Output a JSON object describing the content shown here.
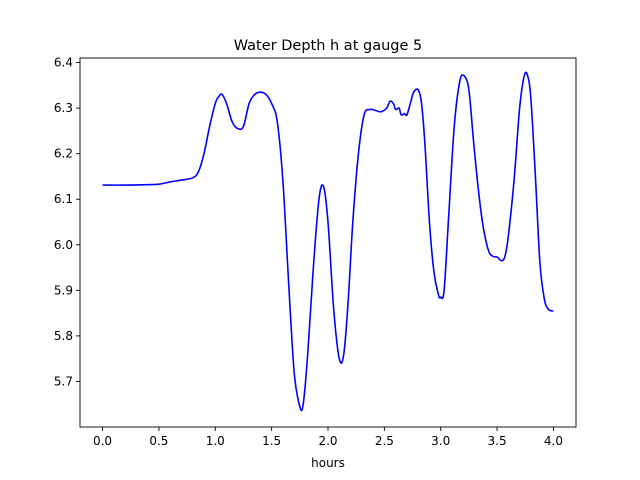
{
  "chart_data": {
    "type": "line",
    "title": "Water Depth h at gauge 5",
    "xlabel": "hours",
    "ylabel": "",
    "xlim": [
      -0.2,
      4.2
    ],
    "ylim": [
      5.6,
      6.41
    ],
    "xticks": [
      "0.0",
      "0.5",
      "1.0",
      "1.5",
      "2.0",
      "2.5",
      "3.0",
      "3.5",
      "4.0"
    ],
    "yticks": [
      "5.7",
      "5.8",
      "5.9",
      "6.0",
      "6.1",
      "6.2",
      "6.3",
      "6.4"
    ],
    "grid": false,
    "series": [
      {
        "color": "#0000ff",
        "x": [
          0.0,
          0.2,
          0.4,
          0.5,
          0.6,
          0.7,
          0.8,
          0.85,
          0.9,
          0.95,
          1.0,
          1.03,
          1.06,
          1.1,
          1.15,
          1.2,
          1.25,
          1.3,
          1.35,
          1.4,
          1.45,
          1.5,
          1.55,
          1.6,
          1.65,
          1.7,
          1.75,
          1.78,
          1.82,
          1.87,
          1.92,
          1.96,
          2.0,
          2.05,
          2.1,
          2.14,
          2.18,
          2.22,
          2.27,
          2.32,
          2.37,
          2.42,
          2.47,
          2.52,
          2.55,
          2.58,
          2.6,
          2.63,
          2.65,
          2.68,
          2.7,
          2.73,
          2.76,
          2.8,
          2.83,
          2.86,
          2.9,
          2.94,
          2.98,
          3.0,
          3.03,
          3.07,
          3.12,
          3.17,
          3.21,
          3.25,
          3.29,
          3.33,
          3.37,
          3.42,
          3.46,
          3.5,
          3.54,
          3.57,
          3.6,
          3.65,
          3.7,
          3.74,
          3.77,
          3.8,
          3.84,
          3.88,
          3.92,
          3.95,
          3.98,
          4.0
        ],
        "y": [
          6.131,
          6.131,
          6.132,
          6.133,
          6.138,
          6.142,
          6.147,
          6.16,
          6.2,
          6.26,
          6.31,
          6.325,
          6.33,
          6.31,
          6.27,
          6.255,
          6.26,
          6.31,
          6.33,
          6.335,
          6.33,
          6.31,
          6.27,
          6.14,
          5.92,
          5.72,
          5.645,
          5.65,
          5.76,
          5.95,
          6.1,
          6.128,
          6.05,
          5.86,
          5.75,
          5.76,
          5.88,
          6.05,
          6.2,
          6.285,
          6.297,
          6.295,
          6.292,
          6.3,
          6.315,
          6.31,
          6.297,
          6.3,
          6.285,
          6.288,
          6.285,
          6.31,
          6.335,
          6.34,
          6.31,
          6.22,
          6.05,
          5.94,
          5.89,
          5.885,
          5.9,
          6.06,
          6.26,
          6.36,
          6.37,
          6.34,
          6.23,
          6.13,
          6.05,
          5.99,
          5.975,
          5.973,
          5.965,
          5.975,
          6.02,
          6.14,
          6.3,
          6.37,
          6.372,
          6.32,
          6.15,
          5.96,
          5.88,
          5.86,
          5.855,
          5.855
        ]
      }
    ]
  }
}
